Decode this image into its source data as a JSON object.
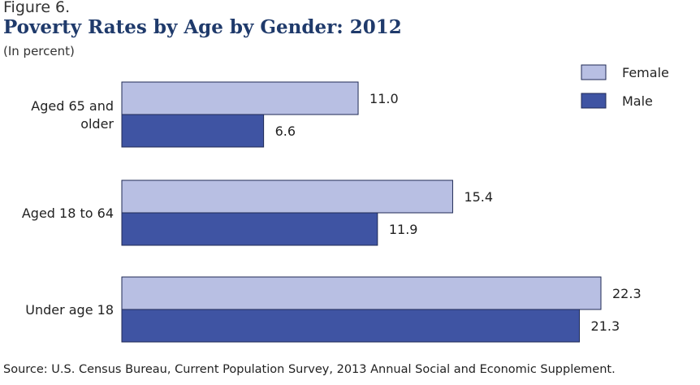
{
  "figure_label": "Figure 6.",
  "title": "Poverty Rates by Age by Gender: 2012",
  "subtitle": "(In percent)",
  "source": "Source: U.S. Census Bureau, Current Population Survey, 2013 Annual Social and Economic Supplement.",
  "colors": {
    "Female": "#b8bfe3",
    "Male": "#3f54a3",
    "stroke": "#1f2a55"
  },
  "chart_data": {
    "type": "bar",
    "orientation": "horizontal",
    "categories": [
      [
        "Aged 65 and",
        "older"
      ],
      [
        "Aged 18 to 64"
      ],
      [
        "Under age 18"
      ]
    ],
    "series": [
      {
        "name": "Female",
        "values": [
          11.0,
          15.4,
          22.3
        ],
        "labels": [
          "11.0",
          "15.4",
          "22.3"
        ]
      },
      {
        "name": "Male",
        "values": [
          6.6,
          11.9,
          21.3
        ],
        "labels": [
          "6.6",
          "11.9",
          "21.3"
        ]
      }
    ],
    "xlim": [
      0,
      22.3
    ],
    "legend_position": "top-right",
    "grid": false
  }
}
